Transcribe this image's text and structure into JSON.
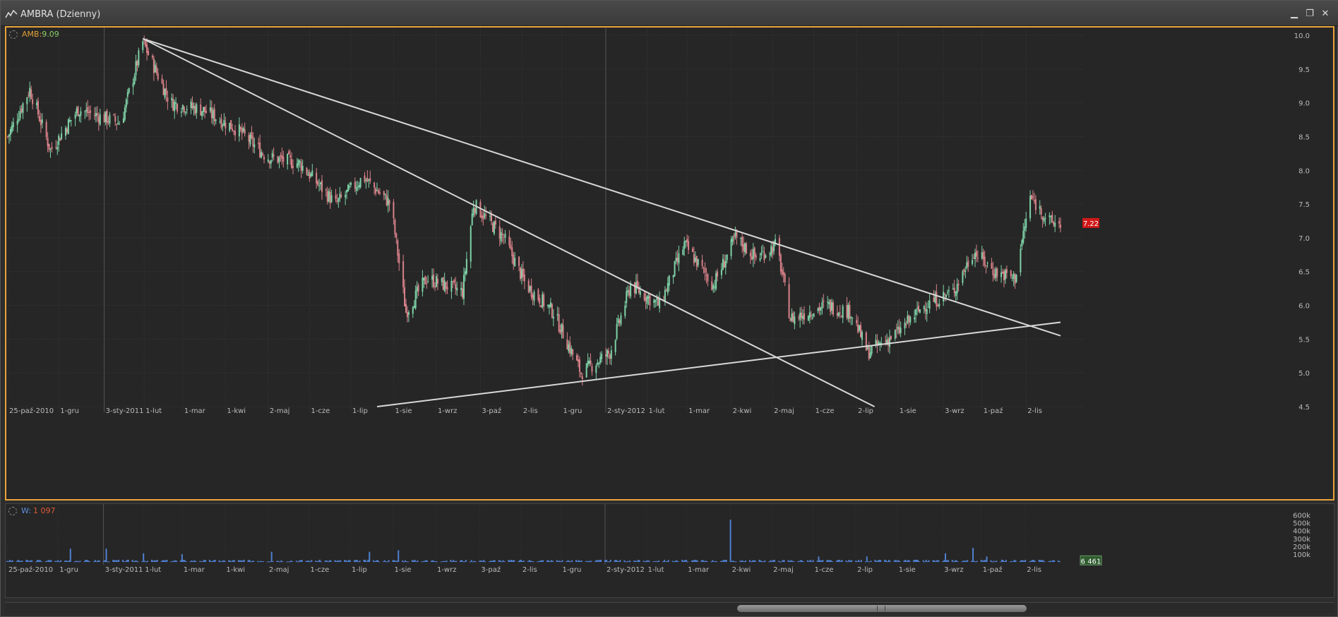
{
  "window": {
    "title": "AMBRA (Dzienny)"
  },
  "price_panel": {
    "symbol": "AMB",
    "value": "9.09",
    "last_price_badge": "7.22"
  },
  "volume_panel": {
    "label": "W:",
    "value": "1 097",
    "last_volume_badge": "6 461"
  },
  "colors": {
    "accent": "#e8a33a",
    "up": "#7fd3a8",
    "down": "#d9828a",
    "volume": "#4f7fd0",
    "price_badge": "#d01818",
    "volume_badge": "#2e5a2e"
  },
  "icons": {
    "app": "chart-line-icon",
    "crosshair": "crosshair-icon"
  },
  "chart_data": [
    {
      "type": "candlestick",
      "title": "AMBRA (Dzienny)",
      "x_date_range": [
        "2010-10-25",
        "2012-11-27"
      ],
      "x_tick_labels": [
        "25-paź-2010",
        "1-gru",
        "3-sty-2011",
        "1-lut",
        "1-mar",
        "1-kwi",
        "2-maj",
        "1-cze",
        "1-lip",
        "1-sie",
        "1-wrz",
        "3-paź",
        "2-lis",
        "1-gru",
        "2-sty-2012",
        "1-lut",
        "1-mar",
        "2-kwi",
        "2-maj",
        "1-cze",
        "2-lip",
        "1-sie",
        "3-wrz",
        "1-paź",
        "2-lis"
      ],
      "y_tick_labels": [
        "10.0",
        "9.5",
        "9.0",
        "8.5",
        "8.0",
        "7.5",
        "7.0",
        "6.5",
        "6.0",
        "5.5",
        "5.0",
        "4.5"
      ],
      "ylim": [
        4.5,
        10.0
      ],
      "grid": true,
      "approx_close_path": [
        [
          "2010-10-25",
          8.5
        ],
        [
          "2010-11-10",
          9.2
        ],
        [
          "2010-11-25",
          8.3
        ],
        [
          "2010-12-15",
          8.9
        ],
        [
          "2011-01-15",
          8.7
        ],
        [
          "2011-01-31",
          9.9
        ],
        [
          "2011-02-20",
          9.0
        ],
        [
          "2011-03-15",
          8.9
        ],
        [
          "2011-04-10",
          8.6
        ],
        [
          "2011-05-01",
          8.2
        ],
        [
          "2011-05-25",
          8.1
        ],
        [
          "2011-06-20",
          7.5
        ],
        [
          "2011-07-10",
          7.9
        ],
        [
          "2011-07-30",
          7.5
        ],
        [
          "2011-08-10",
          5.9
        ],
        [
          "2011-08-25",
          6.4
        ],
        [
          "2011-09-20",
          6.2
        ],
        [
          "2011-09-28",
          7.5
        ],
        [
          "2011-10-20",
          7.0
        ],
        [
          "2011-11-05",
          6.3
        ],
        [
          "2011-11-25",
          5.9
        ],
        [
          "2011-12-15",
          5.0
        ],
        [
          "2012-01-05",
          5.3
        ],
        [
          "2012-01-20",
          6.3
        ],
        [
          "2012-02-10",
          6.0
        ],
        [
          "2012-02-28",
          6.9
        ],
        [
          "2012-03-20",
          6.3
        ],
        [
          "2012-04-05",
          7.0
        ],
        [
          "2012-04-20",
          6.7
        ],
        [
          "2012-05-05",
          6.9
        ],
        [
          "2012-05-15",
          5.8
        ],
        [
          "2012-06-10",
          6.0
        ],
        [
          "2012-06-28",
          5.9
        ],
        [
          "2012-07-10",
          5.3
        ],
        [
          "2012-08-01",
          5.6
        ],
        [
          "2012-08-20",
          6.0
        ],
        [
          "2012-09-10",
          6.2
        ],
        [
          "2012-09-25",
          6.8
        ],
        [
          "2012-10-10",
          6.5
        ],
        [
          "2012-10-25",
          6.4
        ],
        [
          "2012-11-05",
          7.6
        ],
        [
          "2012-11-20",
          7.22
        ]
      ],
      "trend_lines": [
        {
          "from": [
            "2011-01-31",
            9.95
          ],
          "to": [
            "2012-11-27",
            5.55
          ]
        },
        {
          "from": [
            "2011-01-31",
            9.95
          ],
          "to": [
            "2012-07-15",
            4.5
          ]
        },
        {
          "from": [
            "2011-07-20",
            4.5
          ],
          "to": [
            "2012-11-27",
            5.75
          ]
        }
      ]
    },
    {
      "type": "bar",
      "title": "W",
      "y_tick_labels": [
        "600k",
        "500k",
        "400k",
        "300k",
        "200k",
        "100k"
      ],
      "ylim": [
        0,
        650000
      ],
      "x_tick_labels": [
        "25-paź-2010",
        "1-gru",
        "3-sty-2011",
        "1-lut",
        "1-mar",
        "1-kwi",
        "2-maj",
        "1-cze",
        "1-lip",
        "1-sie",
        "1-wrz",
        "3-paź",
        "2-lis",
        "1-gru",
        "2-sty-2012",
        "1-lut",
        "1-mar",
        "2-kwi",
        "2-maj",
        "1-cze",
        "2-lip",
        "1-sie",
        "3-wrz",
        "1-paź",
        "2-lis"
      ],
      "spikes": [
        [
          "2010-12-10",
          170000
        ],
        [
          "2011-01-05",
          170000
        ],
        [
          "2011-02-01",
          110000
        ],
        [
          "2011-03-01",
          100000
        ],
        [
          "2011-05-05",
          130000
        ],
        [
          "2011-07-15",
          130000
        ],
        [
          "2011-08-05",
          150000
        ],
        [
          "2012-04-02",
          540000
        ],
        [
          "2012-04-15",
          110000
        ],
        [
          "2012-06-05",
          70000
        ],
        [
          "2012-07-10",
          70000
        ],
        [
          "2012-09-05",
          110000
        ],
        [
          "2012-09-25",
          180000
        ],
        [
          "2012-10-05",
          70000
        ]
      ],
      "baseline_volume": 15000
    }
  ]
}
